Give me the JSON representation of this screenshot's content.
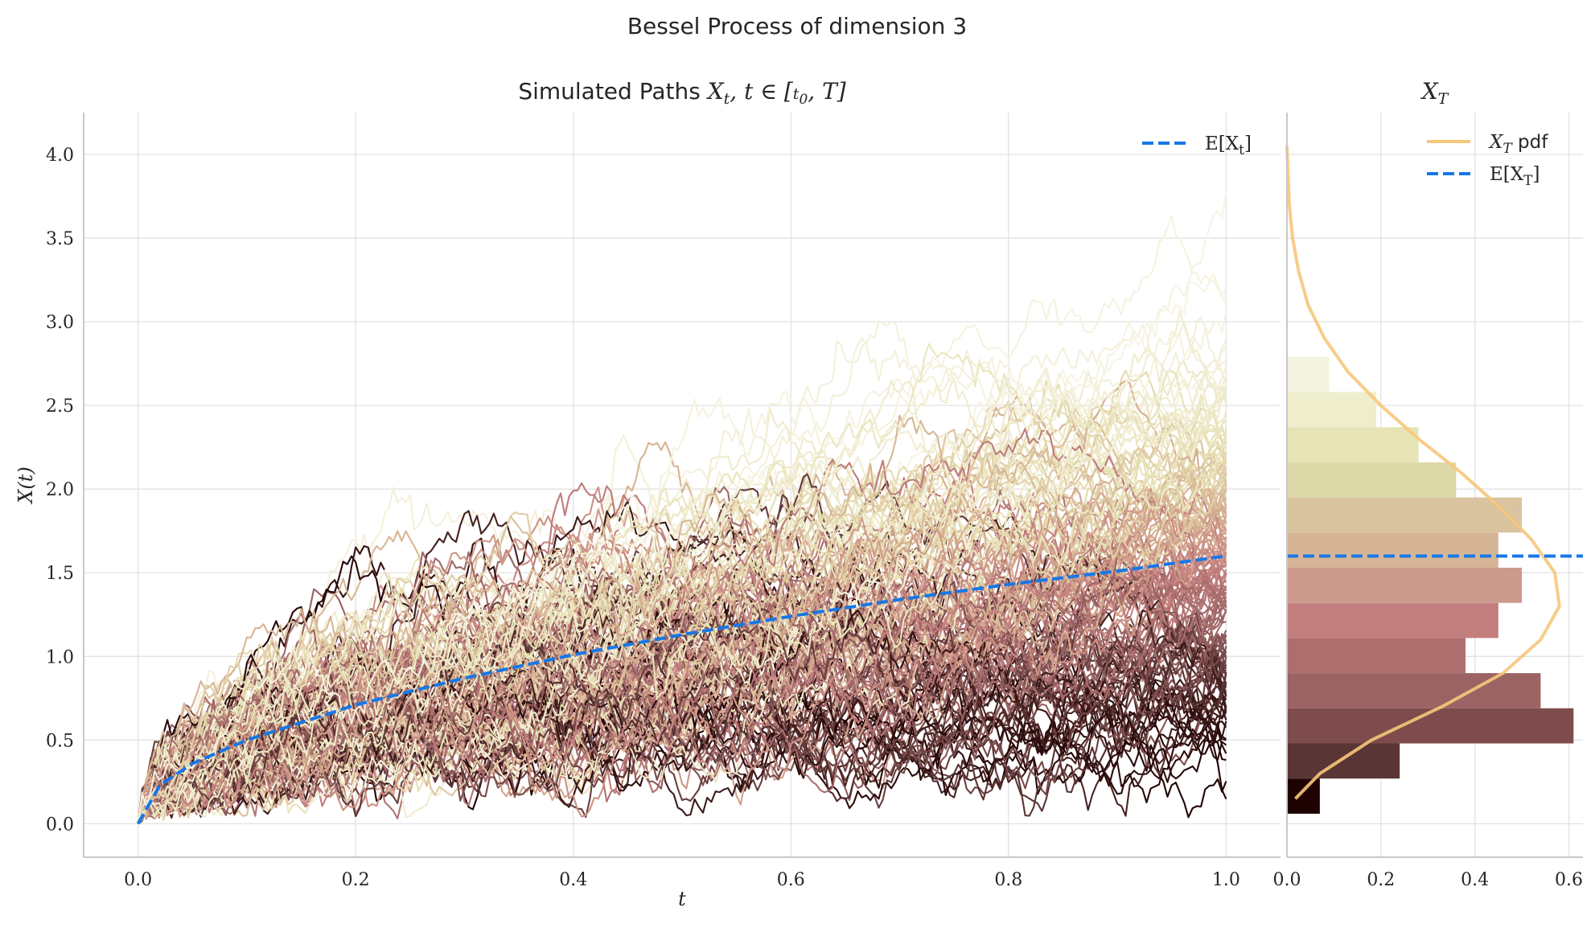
{
  "figure": {
    "suptitle": "Bessel Process of dimension 3"
  },
  "chart_data": [
    {
      "type": "line",
      "title": "Simulated Paths X_t, t ∈ [t_0, T]",
      "xlabel": "t",
      "ylabel": "X(t)",
      "xlim": [
        -0.05,
        1.05
      ],
      "ylim": [
        -0.2,
        4.25
      ],
      "xticks": [
        "0.0",
        "0.2",
        "0.4",
        "0.6",
        "0.8",
        "1.0"
      ],
      "yticks": [
        "0.0",
        "0.5",
        "1.0",
        "1.5",
        "2.0",
        "2.5",
        "3.0",
        "3.5",
        "4.0"
      ],
      "grid": true,
      "n_paths": 160,
      "path_colormap": [
        "#1f0100",
        "#5a3434",
        "#9e6666",
        "#c68280",
        "#d6b090",
        "#e6e0b2",
        "#f7f4e4"
      ],
      "expected_line": {
        "name": "E[X_t]",
        "color": "#1877e6",
        "style": "dashed",
        "x": [
          0.0,
          0.02,
          0.05,
          0.1,
          0.2,
          0.3,
          0.4,
          0.5,
          0.6,
          0.7,
          0.8,
          0.9,
          1.0
        ],
        "y": [
          0.0,
          0.23,
          0.36,
          0.5,
          0.71,
          0.87,
          1.01,
          1.13,
          1.24,
          1.34,
          1.43,
          1.51,
          1.6
        ]
      },
      "legend": {
        "position": "top-right",
        "entries": [
          "E[X_t]"
        ]
      }
    },
    {
      "type": "bar",
      "orientation": "horizontal",
      "title": "X_T",
      "xlim": [
        0.0,
        0.63
      ],
      "ylim": [
        -0.2,
        4.25
      ],
      "xticks": [
        "0.0",
        "0.2",
        "0.4",
        "0.6"
      ],
      "grid": true,
      "bin_edges": [
        0.06,
        0.27,
        0.48,
        0.69,
        0.9,
        1.11,
        1.32,
        1.53,
        1.74,
        1.95,
        2.16,
        2.37,
        2.58,
        2.79,
        3.0
      ],
      "densities": [
        0.07,
        0.24,
        0.61,
        0.54,
        0.38,
        0.45,
        0.5,
        0.45,
        0.5,
        0.36,
        0.28,
        0.19,
        0.09,
        0.0
      ],
      "bar_colors": [
        "#1f0100",
        "#5a3535",
        "#7e4c4c",
        "#9b6363",
        "#ae6e6e",
        "#c37f7d",
        "#cc9a8d",
        "#d6b597",
        "#d9c49f",
        "#ded9a9",
        "#e6e4b5",
        "#eeeecd",
        "#f4f3e1",
        "#f7f4e4"
      ],
      "pdf_line": {
        "name": "X_T pdf",
        "color": "#f7c77b",
        "y": [
          0.15,
          0.3,
          0.5,
          0.7,
          0.9,
          1.1,
          1.3,
          1.5,
          1.7,
          1.9,
          2.1,
          2.3,
          2.5,
          2.7,
          2.9,
          3.1,
          3.3,
          3.5,
          3.7,
          4.05
        ],
        "x": [
          0.018,
          0.07,
          0.18,
          0.33,
          0.46,
          0.54,
          0.58,
          0.57,
          0.52,
          0.45,
          0.37,
          0.28,
          0.2,
          0.13,
          0.08,
          0.045,
          0.025,
          0.012,
          0.005,
          0.0
        ]
      },
      "expected_line": {
        "name": "E[X_T]",
        "value": 1.6,
        "color": "#1877e6",
        "style": "dashed"
      },
      "legend": {
        "position": "top-right",
        "entries": [
          "X_T pdf",
          "E[X_T]"
        ]
      }
    }
  ]
}
